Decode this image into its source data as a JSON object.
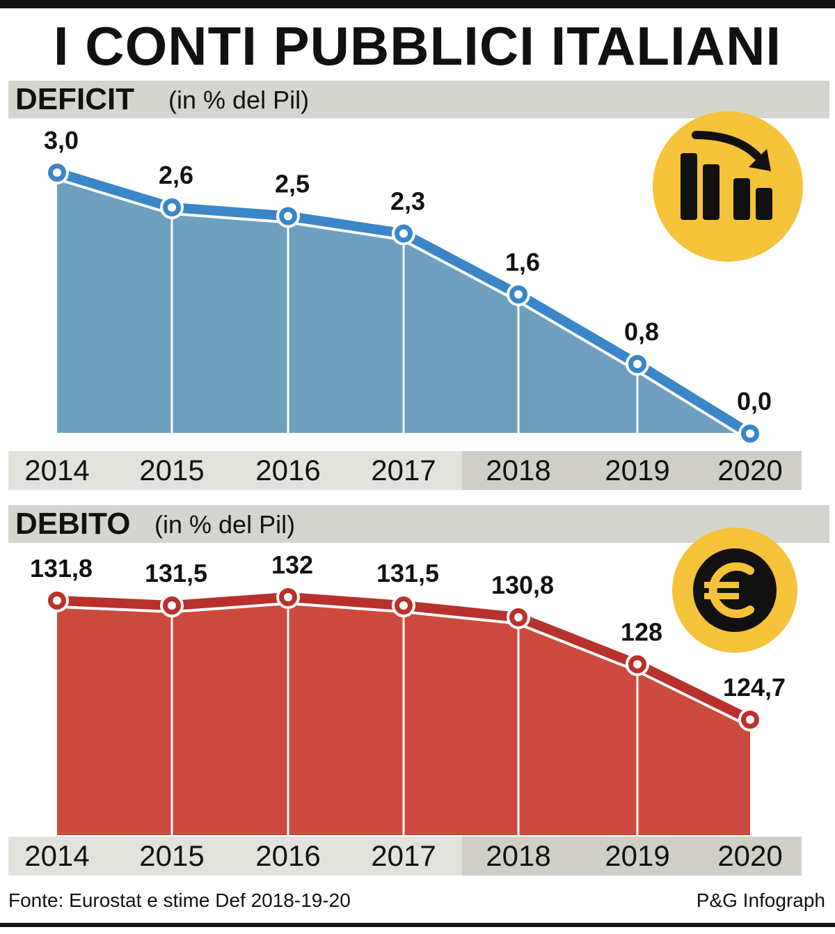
{
  "title": "I CONTI PUBBLICI ITALIANI",
  "source": "Fonte: Eurostat e stime Def 2018-19-20",
  "credit": "P&G Infograph",
  "colors": {
    "deficit_line": "#3a86c8",
    "deficit_fill": "#6e9fbf",
    "debito_line": "#b8312c",
    "debito_fill": "#cc4a3d",
    "badge": "#f4c33a"
  },
  "icons": {
    "deficit": "declining-bar-chart-icon",
    "debito": "euro-coin-icon"
  },
  "chart_data": [
    {
      "type": "area",
      "title": "DEFICIT",
      "unit": "(in % del Pil)",
      "categories": [
        "2014",
        "2015",
        "2016",
        "2017",
        "2018",
        "2019",
        "2020"
      ],
      "values": [
        3.0,
        2.6,
        2.5,
        2.3,
        1.6,
        0.8,
        0.0
      ],
      "labels": [
        "3,0",
        "2,6",
        "2,5",
        "2,3",
        "1,6",
        "0,8",
        "0,0"
      ],
      "ylim": [
        0,
        3.0
      ]
    },
    {
      "type": "area",
      "title": "DEBITO",
      "unit": "(in % del Pil)",
      "categories": [
        "2014",
        "2015",
        "2016",
        "2017",
        "2018",
        "2019",
        "2020"
      ],
      "values": [
        131.8,
        131.5,
        132,
        131.5,
        130.8,
        128,
        124.7
      ],
      "labels": [
        "131,8",
        "131,5",
        "132",
        "131,5",
        "130,8",
        "128",
        "124,7"
      ],
      "ylim": [
        124.7,
        132
      ]
    }
  ]
}
